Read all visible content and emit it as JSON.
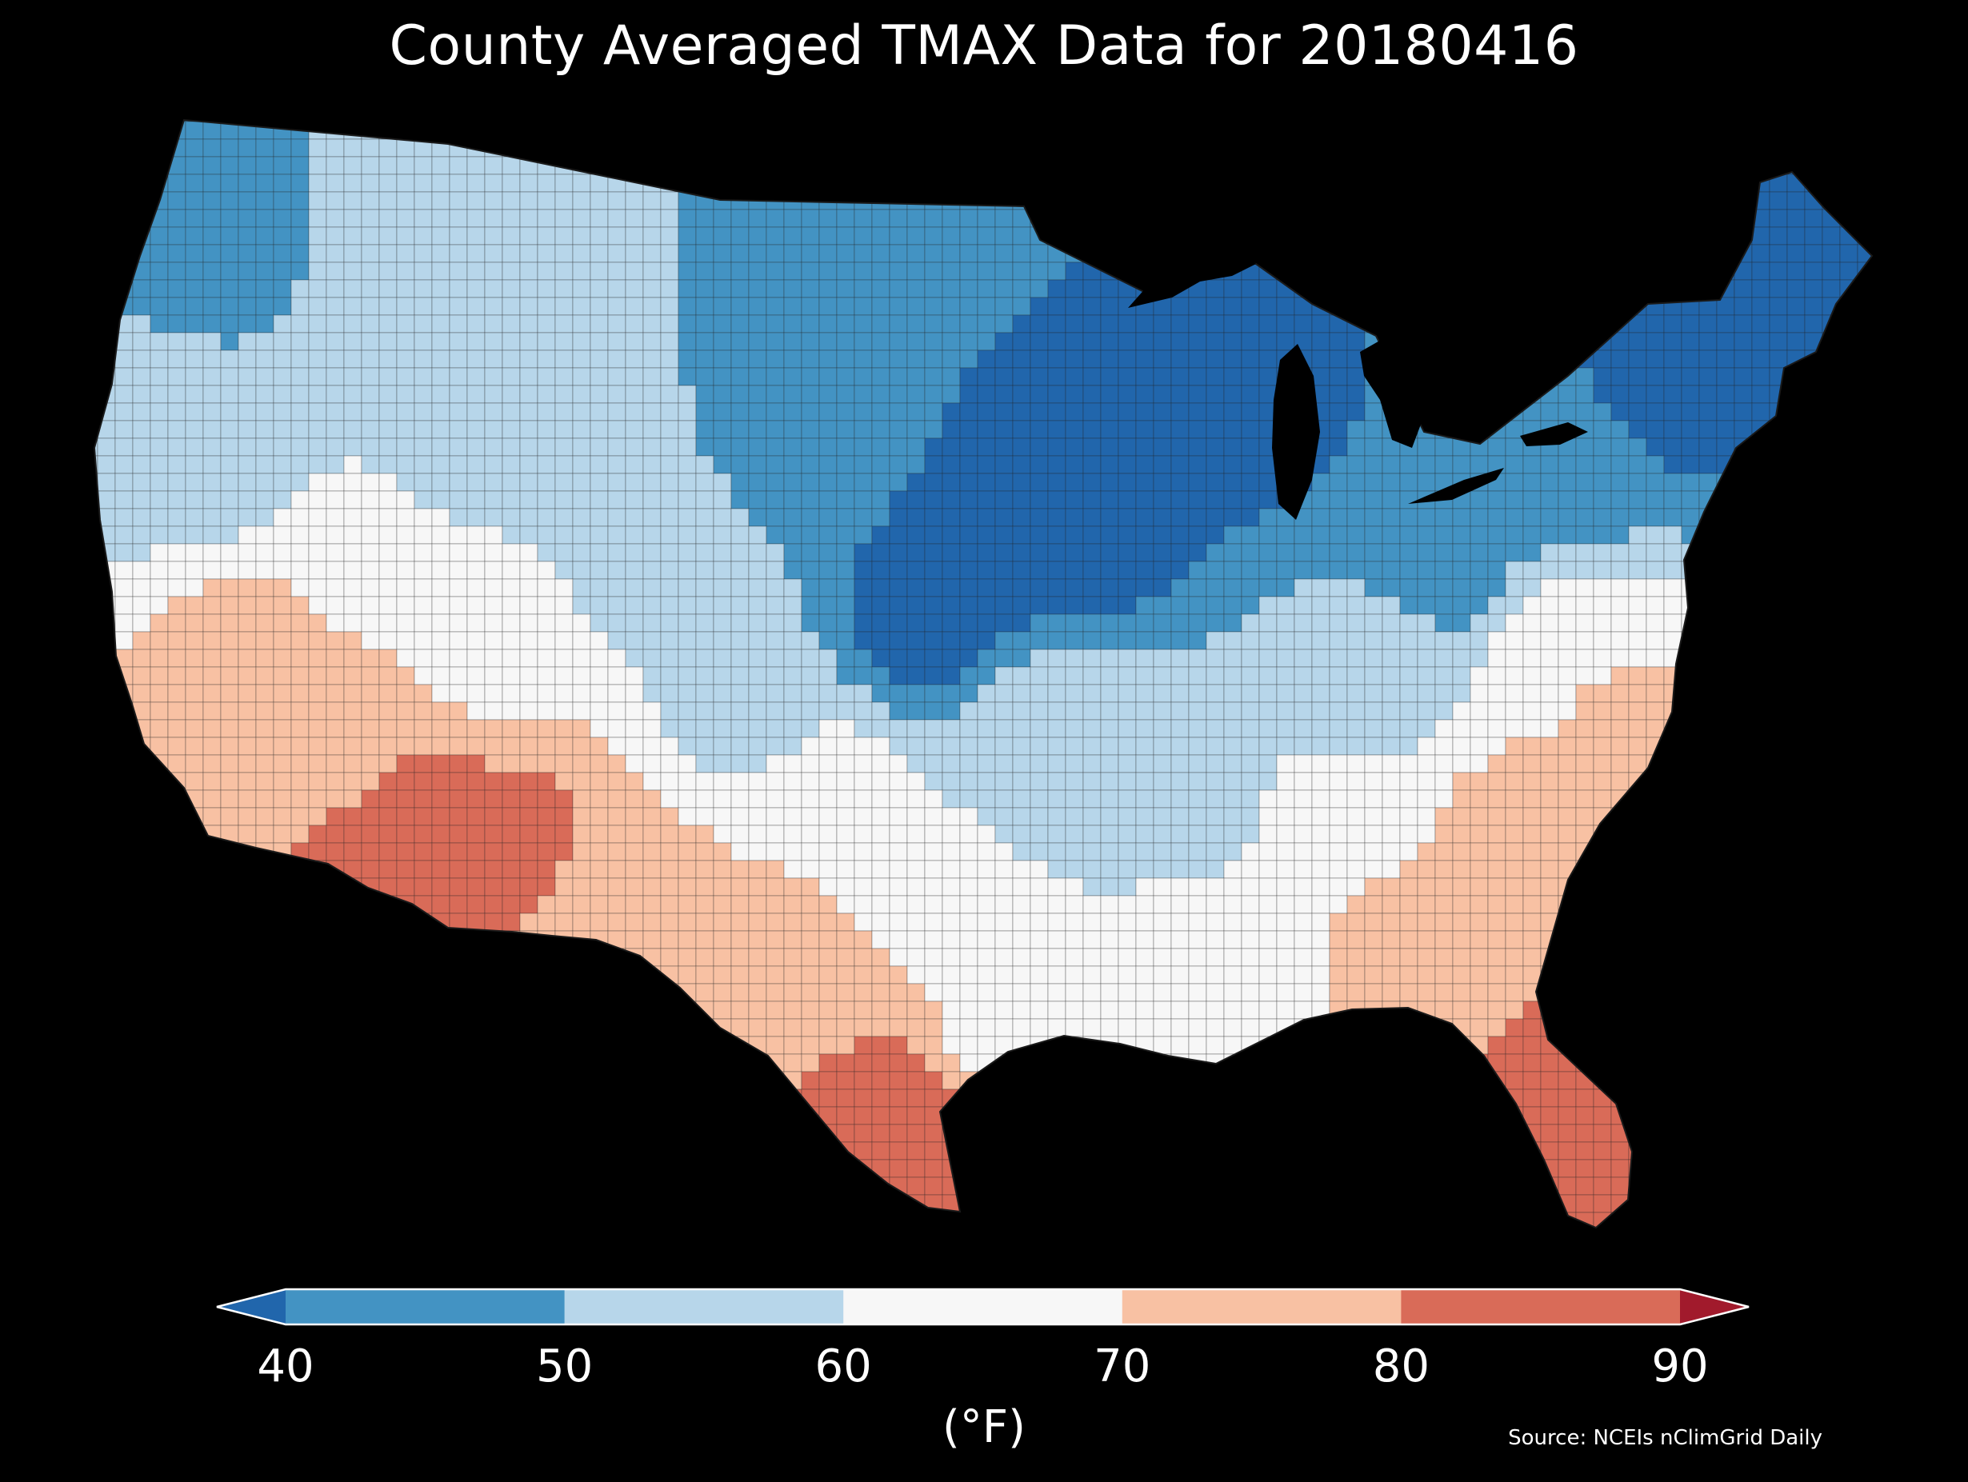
{
  "title": "County Averaged TMAX Data for 20180416",
  "source": "Source: NCEIs nClimGrid Daily",
  "colorbar": {
    "unit": "(°F)",
    "ticks": [
      "40",
      "50",
      "60",
      "70",
      "80",
      "90"
    ],
    "bins": [
      {
        "range": "<40",
        "color": "#2166ac"
      },
      {
        "range": "40-50",
        "color": "#4393c3"
      },
      {
        "range": "50-60",
        "color": "#b7d6ea"
      },
      {
        "range": "60-70",
        "color": "#f7f7f7"
      },
      {
        "range": "70-80",
        "color": "#f8c1a3"
      },
      {
        "range": "80-90",
        "color": "#d96b58"
      },
      {
        "range": ">90",
        "color": "#a11a2c"
      }
    ]
  },
  "map": {
    "region": "Contiguous United States",
    "features": [
      "US counties",
      "Great Lakes"
    ],
    "pattern": {
      "coldest": "Upper Midwest / Great Lakes / Northeast (<40-50 °F)",
      "warmest": "Southern Arizona, South Texas, South Florida (80-90 °F)"
    }
  }
}
